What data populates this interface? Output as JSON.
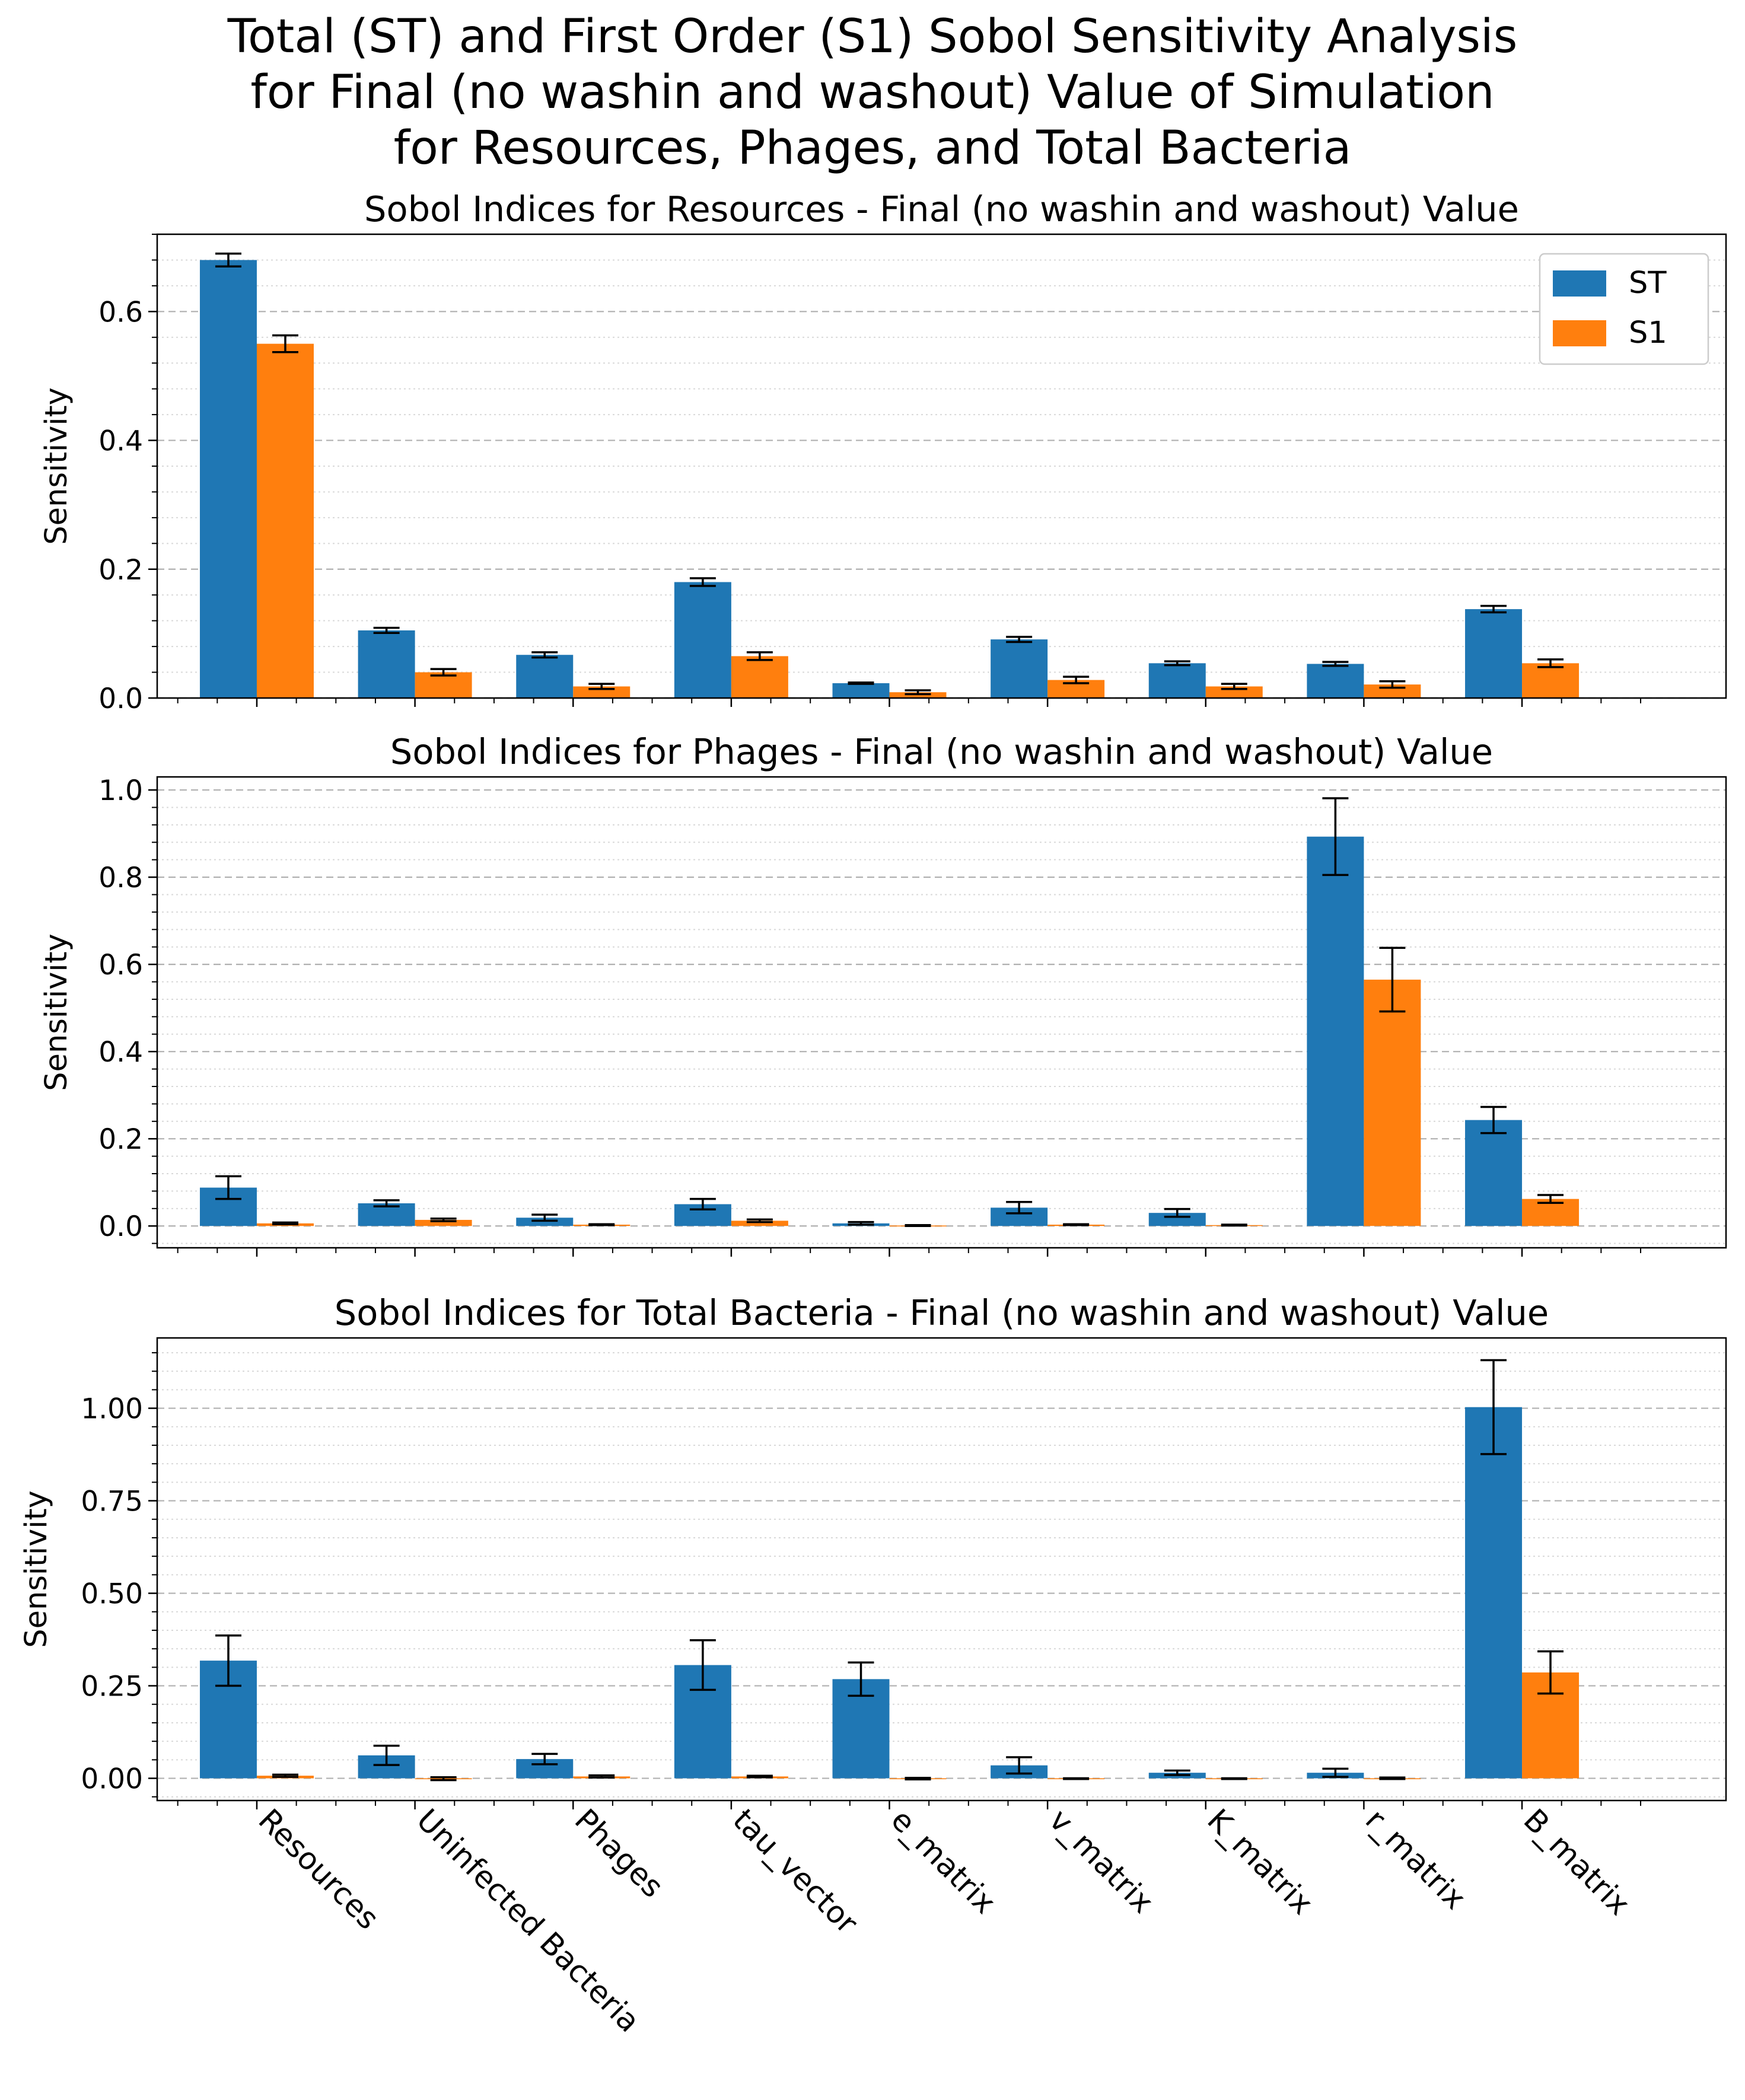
{
  "title": [
    "Total (ST) and First Order (S1) Sobol Sensitivity Analysis",
    "for Final (no washin and washout) Value of Simulation",
    "for Resources, Phages, and Total Bacteria"
  ],
  "colors": {
    "ST": "#1f77b4",
    "S1": "#ff7f0e"
  },
  "chart_data": [
    {
      "type": "bar",
      "title": "Sobol Indices for Resources - Final (no washin and washout) Value",
      "ylabel": "Sensitivity",
      "categories": [
        "Resources",
        "Uninfected Bacteria",
        "Phages",
        "tau_vector",
        "e_matrix",
        "v_matrix",
        "K_matrix",
        "r_matrix",
        "B_matrix"
      ],
      "ylim": [
        0,
        0.72
      ],
      "yticks": [
        "0.0",
        "0.2",
        "0.4",
        "0.6"
      ],
      "legend": "top-right",
      "series": [
        {
          "name": "ST",
          "values": [
            0.68,
            0.105,
            0.067,
            0.18,
            0.023,
            0.091,
            0.054,
            0.053,
            0.138
          ],
          "errors": [
            0.01,
            0.004,
            0.004,
            0.006,
            0.001,
            0.004,
            0.003,
            0.003,
            0.005
          ]
        },
        {
          "name": "S1",
          "values": [
            0.55,
            0.04,
            0.018,
            0.065,
            0.009,
            0.028,
            0.018,
            0.021,
            0.054
          ],
          "errors": [
            0.013,
            0.005,
            0.004,
            0.006,
            0.003,
            0.005,
            0.004,
            0.005,
            0.006
          ]
        }
      ]
    },
    {
      "type": "bar",
      "title": "Sobol Indices for Phages - Final (no washin and washout) Value",
      "ylabel": "Sensitivity",
      "categories": [
        "Resources",
        "Uninfected Bacteria",
        "Phages",
        "tau_vector",
        "e_matrix",
        "v_matrix",
        "K_matrix",
        "r_matrix",
        "B_matrix"
      ],
      "ylim": [
        -0.05,
        1.03
      ],
      "yticks": [
        "0.0",
        "0.2",
        "0.4",
        "0.6",
        "0.8",
        "1.0"
      ],
      "series": [
        {
          "name": "ST",
          "values": [
            0.088,
            0.052,
            0.019,
            0.05,
            0.006,
            0.042,
            0.03,
            0.893,
            0.243
          ],
          "errors": [
            0.026,
            0.007,
            0.007,
            0.012,
            0.003,
            0.013,
            0.009,
            0.088,
            0.03
          ]
        },
        {
          "name": "S1",
          "values": [
            0.006,
            0.014,
            0.003,
            0.012,
            0.001,
            0.003,
            0.002,
            0.565,
            0.062
          ],
          "errors": [
            0.002,
            0.003,
            0.001,
            0.003,
            0.001,
            0.001,
            0.001,
            0.073,
            0.009
          ]
        }
      ]
    },
    {
      "type": "bar",
      "title": "Sobol Indices for Total Bacteria - Final (no washin and washout) Value",
      "ylabel": "Sensitivity",
      "categories": [
        "Resources",
        "Uninfected Bacteria",
        "Phages",
        "tau_vector",
        "e_matrix",
        "v_matrix",
        "K_matrix",
        "r_matrix",
        "B_matrix"
      ],
      "ylim": [
        -0.06,
        1.19
      ],
      "yticks": [
        "0.00",
        "0.25",
        "0.50",
        "0.75",
        "1.00"
      ],
      "series": [
        {
          "name": "ST",
          "values": [
            0.318,
            0.062,
            0.052,
            0.306,
            0.268,
            0.035,
            0.015,
            0.015,
            1.003
          ],
          "errors": [
            0.068,
            0.026,
            0.014,
            0.067,
            0.045,
            0.022,
            0.006,
            0.011,
            0.127
          ]
        },
        {
          "name": "S1",
          "values": [
            0.007,
            -0.001,
            0.005,
            0.005,
            -0.001,
            -0.001,
            -0.001,
            0.0,
            0.286
          ],
          "errors": [
            0.003,
            0.004,
            0.003,
            0.002,
            0.002,
            0.001,
            0.001,
            0.002,
            0.057
          ]
        }
      ]
    }
  ]
}
